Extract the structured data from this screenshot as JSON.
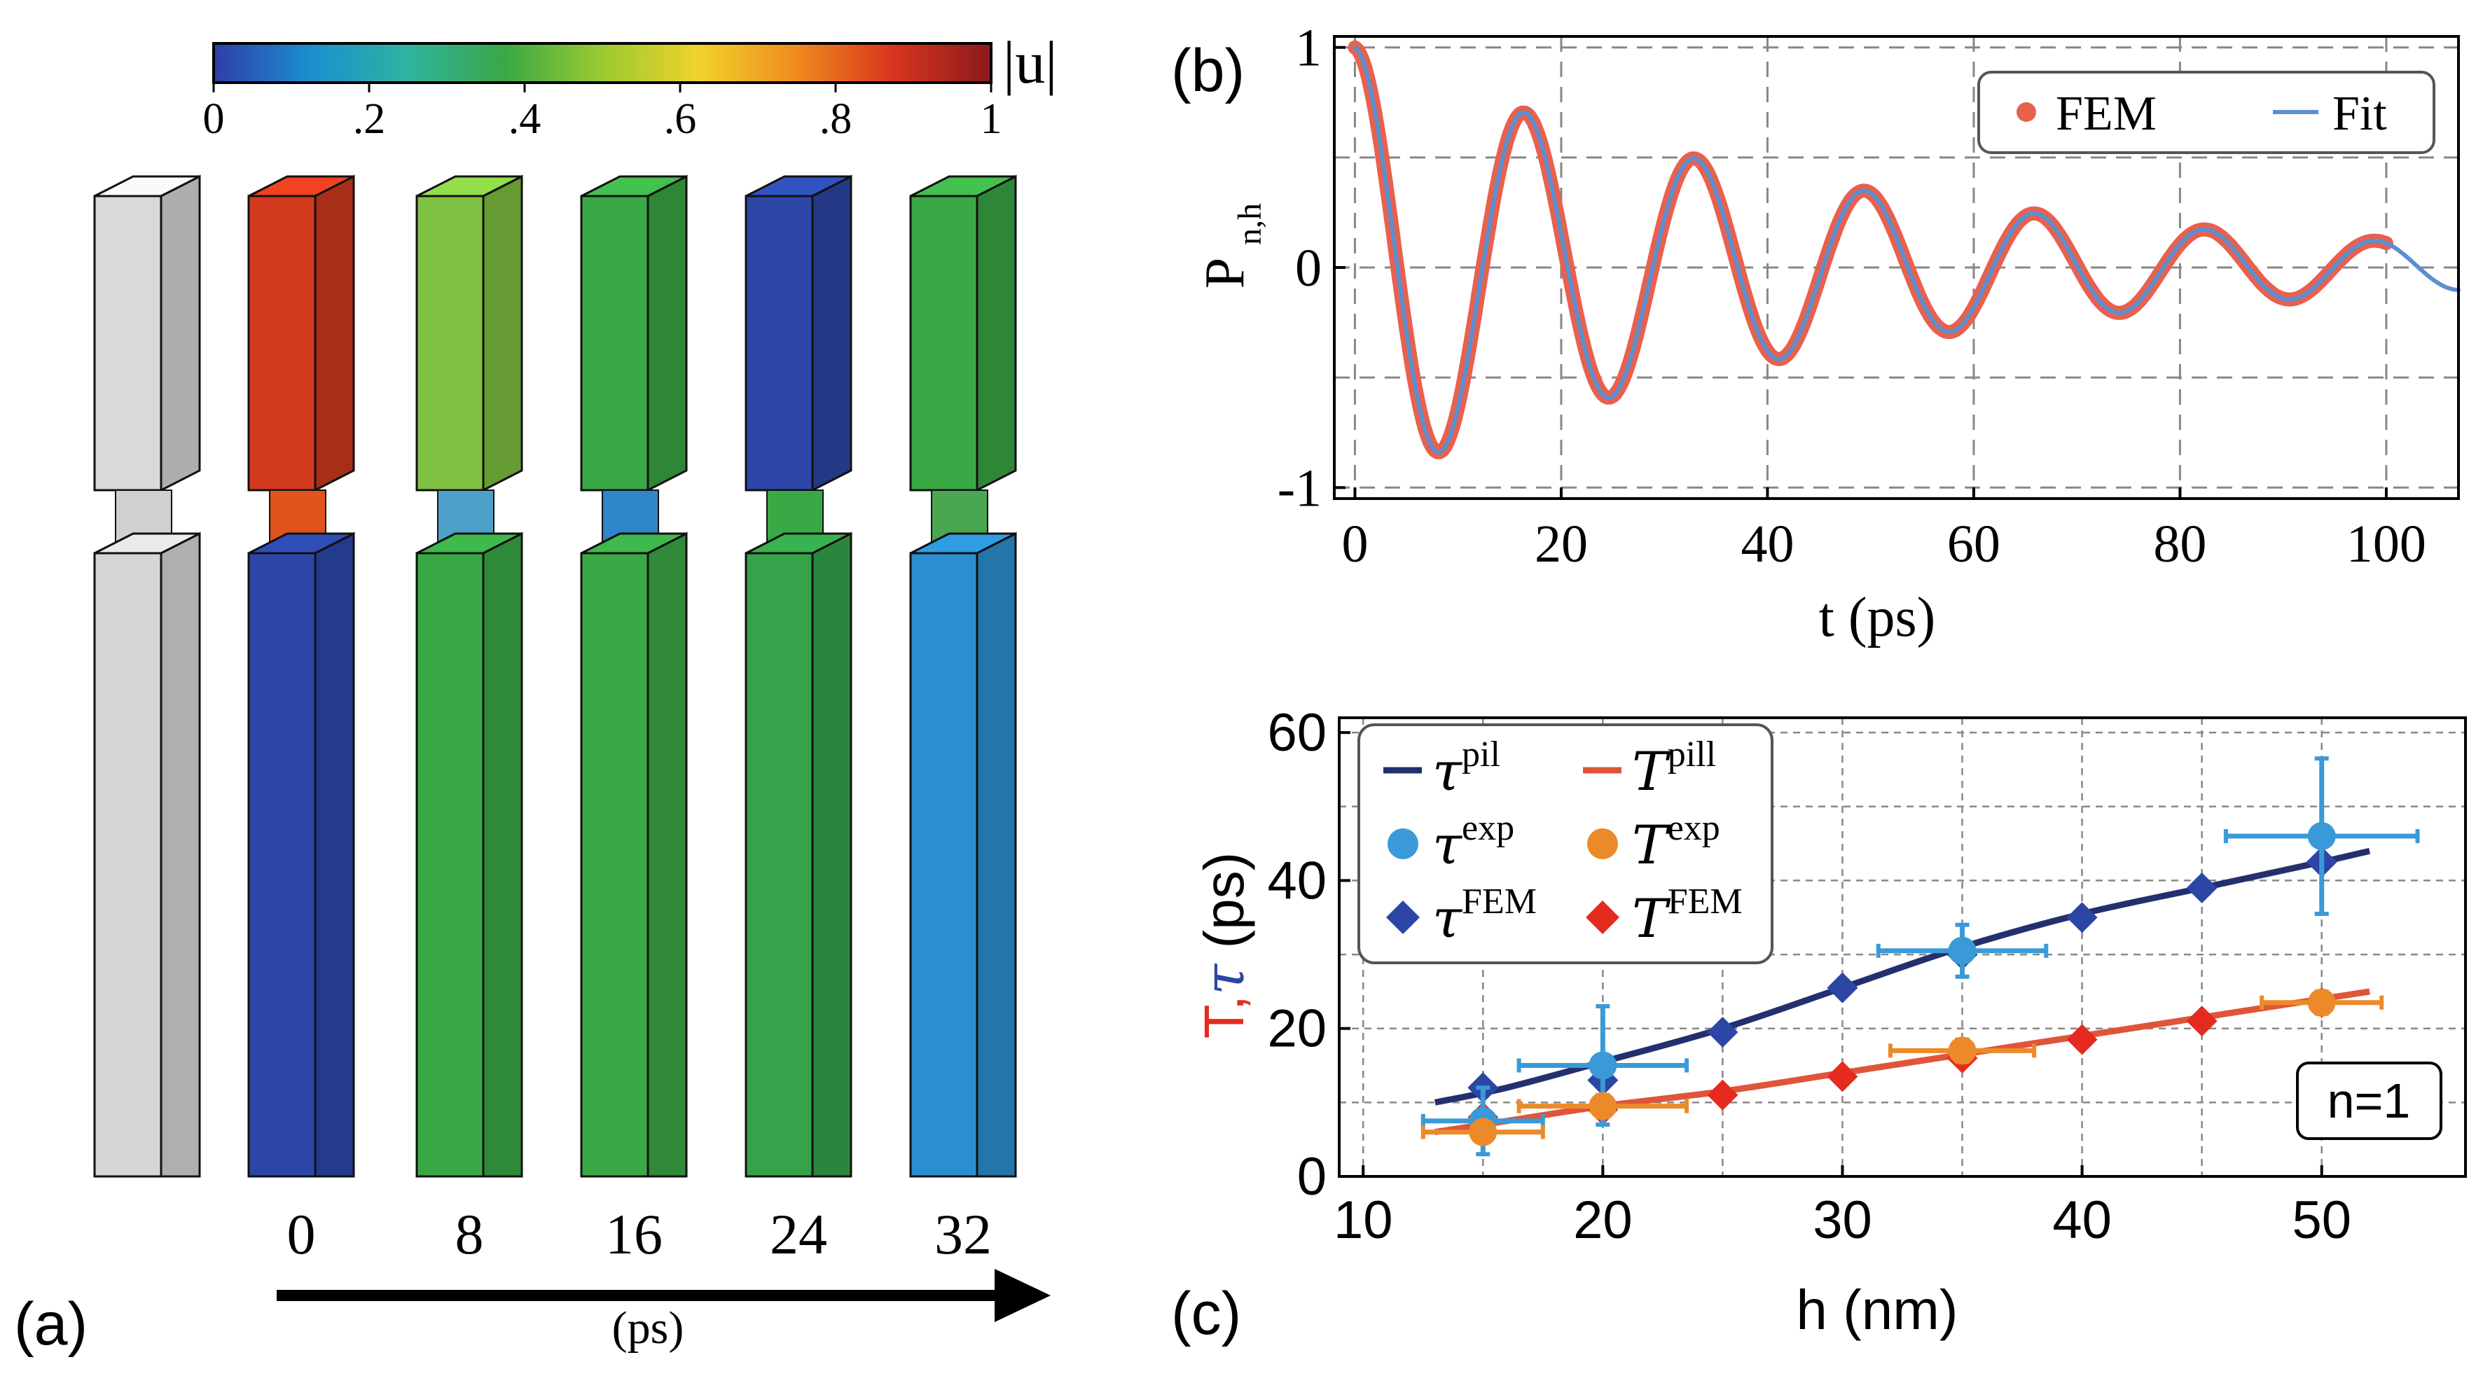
{
  "chart_data": [
    {
      "panel_id": "a",
      "panel_label": "(a)",
      "type": "other",
      "description_role": "snapshots",
      "colorbar": {
        "label": "|u|",
        "ticks": [
          "0",
          ".2",
          ".4",
          ".6",
          ".8",
          "1"
        ],
        "range": [
          0,
          1
        ],
        "colors": [
          "#2e3ea8",
          "#1a8fd0",
          "#2fb3a0",
          "#3aa845",
          "#9bcb30",
          "#f2d22a",
          "#f08a1f",
          "#d8351e",
          "#8a1a1a"
        ]
      },
      "time_labels": [
        "0",
        "8",
        "16",
        "24",
        "32"
      ],
      "time_unit": "(ps)",
      "pillars": [
        {
          "name": "reference",
          "top": "#d9d9d9",
          "neck": "#d0d0d0",
          "bottom": "#d6d6d6"
        },
        {
          "name": "t0",
          "top": "#d23a1d",
          "neck": "#e0531a",
          "bottom": "#2c47a8"
        },
        {
          "name": "t8",
          "top": "#7fc241",
          "neck": "#4da0c8",
          "bottom": "#38a845"
        },
        {
          "name": "t16",
          "top": "#3aa845",
          "neck": "#2f86c8",
          "bottom": "#3aa845"
        },
        {
          "name": "t24",
          "top": "#2c47a8",
          "neck": "#3aa845",
          "bottom": "#34a34a"
        },
        {
          "name": "t32",
          "top": "#3aa845",
          "neck": "#4aa650",
          "bottom": "#2b8fcf"
        }
      ]
    },
    {
      "panel_id": "b",
      "panel_label": "(b)",
      "type": "line",
      "xlabel": "t (ps)",
      "ylabel_main": "P",
      "ylabel_sub": "n,h",
      "xlim": [
        -2,
        107
      ],
      "ylim": [
        -1.05,
        1.05
      ],
      "xticks": [
        0,
        20,
        40,
        60,
        80,
        100
      ],
      "xtick_labels": [
        "0",
        "20",
        "40",
        "60",
        "80",
        "100"
      ],
      "yticks": [
        -1,
        0,
        1
      ],
      "ytick_labels": [
        "-1",
        "0",
        "1"
      ],
      "grid": true,
      "legend": {
        "position": "top-right",
        "entries": [
          {
            "label": "FEM",
            "marker": "dot",
            "color": "#e8604e"
          },
          {
            "label": "Fit",
            "marker": "line",
            "color": "#5b8fd0"
          }
        ]
      },
      "series": [
        {
          "name": "FEM",
          "style": "thick",
          "color": "#e8604e",
          "t_range": [
            0,
            100
          ],
          "model": {
            "amplitude": 1,
            "tau_ps": 47,
            "period_ps": 16.5
          }
        },
        {
          "name": "Fit",
          "style": "thin",
          "color": "#5b8fd0",
          "t_range": [
            0,
            107
          ],
          "model": {
            "amplitude": 1,
            "tau_ps": 47,
            "period_ps": 16.5
          }
        }
      ]
    },
    {
      "panel_id": "c",
      "panel_label": "(c)",
      "type": "line",
      "xlabel": "h (nm)",
      "ylabel_parts": [
        "T",
        ",",
        "τ",
        " (ps)"
      ],
      "xlim": [
        9,
        56
      ],
      "ylim": [
        0,
        62
      ],
      "xticks": [
        10,
        20,
        30,
        40,
        50
      ],
      "xtick_labels": [
        "10",
        "20",
        "30",
        "40",
        "50"
      ],
      "yticks": [
        0,
        20,
        40,
        60
      ],
      "ytick_labels": [
        "0",
        "20",
        "40",
        "60"
      ],
      "grid": true,
      "annotation": "n=1",
      "legend": {
        "position": "top-left",
        "entries": [
          {
            "base": "τ",
            "sup": "pil",
            "marker": "line",
            "color": "#24306e"
          },
          {
            "base": "T",
            "sup": "pill",
            "marker": "line",
            "color": "#e0553a"
          },
          {
            "base": "τ",
            "sup": "exp",
            "marker": "dot",
            "color": "#3a9ad8"
          },
          {
            "base": "T",
            "sup": "exp",
            "marker": "dot",
            "color": "#ec8a2a"
          },
          {
            "base": "τ",
            "sup": "FEM",
            "marker": "diamond",
            "color": "#2c46a6"
          },
          {
            "base": "T",
            "sup": "FEM",
            "marker": "diamond",
            "color": "#e52b20"
          }
        ]
      },
      "series": [
        {
          "name": "τpil",
          "kind": "line",
          "color": "#24306e",
          "x": [
            13,
            16,
            20,
            25,
            30,
            35,
            40,
            45,
            50,
            52
          ],
          "y": [
            10,
            12,
            15.5,
            20,
            25.5,
            31,
            35.5,
            39,
            42.5,
            44
          ]
        },
        {
          "name": "Tpill",
          "kind": "line",
          "color": "#e0553a",
          "x": [
            13,
            16,
            20,
            25,
            30,
            35,
            40,
            45,
            50,
            52
          ],
          "y": [
            6,
            7.5,
            9.5,
            11.5,
            14,
            16.5,
            19,
            21.5,
            24,
            25
          ]
        },
        {
          "name": "τFEM",
          "kind": "diamond",
          "color": "#2c46a6",
          "x": [
            15,
            20,
            25,
            30,
            35,
            40,
            45,
            50
          ],
          "y": [
            12,
            13,
            19.5,
            25.5,
            30,
            35,
            39,
            42.5
          ]
        },
        {
          "name": "TFEM",
          "kind": "diamond",
          "color": "#e52b20",
          "x": [
            15,
            20,
            25,
            30,
            35,
            40,
            45,
            50
          ],
          "y": [
            8,
            9,
            11,
            13.5,
            16,
            18.5,
            21,
            23.5
          ]
        },
        {
          "name": "τexp",
          "kind": "dot",
          "color": "#3a9ad8",
          "x": [
            15,
            20,
            35,
            50
          ],
          "y": [
            7.5,
            15,
            30.5,
            46
          ],
          "xerr": [
            2.5,
            3.5,
            3.5,
            4
          ],
          "yerr": [
            4.5,
            8,
            3.5,
            10.5
          ]
        },
        {
          "name": "Texp",
          "kind": "dot",
          "color": "#ec8a2a",
          "x": [
            15,
            20,
            35,
            50
          ],
          "y": [
            6,
            9.5,
            17,
            23.5
          ],
          "xerr": [
            2.5,
            3.5,
            3,
            2.5
          ],
          "yerr": [
            1,
            1.5,
            1.5,
            1.5
          ]
        }
      ]
    }
  ]
}
